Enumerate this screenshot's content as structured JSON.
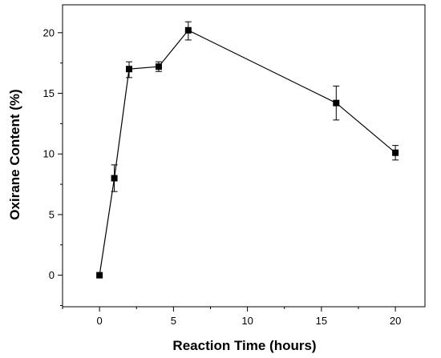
{
  "chart_data": {
    "type": "scatter",
    "title": "",
    "xlabel": "Reaction Time (hours)",
    "ylabel": "Oxirane Content (%)",
    "xlim": [
      -2.5,
      22
    ],
    "ylim": [
      -2.6,
      22.3
    ],
    "x_ticks": [
      0,
      5,
      10,
      15,
      20
    ],
    "y_ticks": [
      0,
      5,
      10,
      15,
      20
    ],
    "x_tick_labels": [
      "0",
      "5",
      "10",
      "15",
      "20"
    ],
    "y_tick_labels": [
      "0",
      "5",
      "10",
      "15",
      "20"
    ],
    "grid": false,
    "legend": "none",
    "marker": "square",
    "line": true,
    "color": "#000000",
    "series": [
      {
        "x": [
          0,
          1,
          2,
          4,
          6,
          16,
          20
        ],
        "y": [
          0,
          8.0,
          17.0,
          17.2,
          20.2,
          14.2,
          10.1
        ],
        "err_plus": [
          0,
          1.1,
          0.6,
          0.4,
          0.7,
          1.4,
          0.6
        ],
        "err_minus": [
          0,
          1.1,
          0.7,
          0.4,
          0.8,
          1.4,
          0.6
        ]
      }
    ]
  }
}
